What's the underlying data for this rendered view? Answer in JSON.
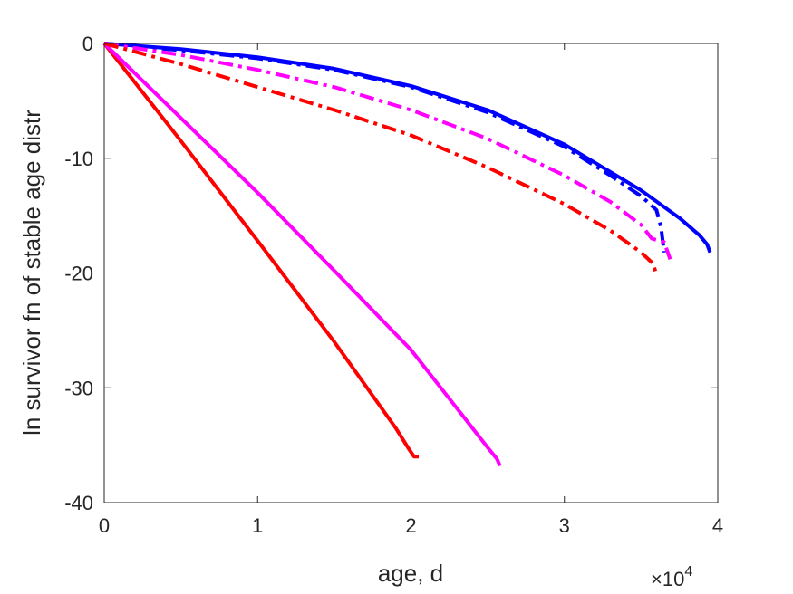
{
  "chart_data": {
    "type": "line",
    "title": "",
    "xlabel": "age, d",
    "ylabel": "ln survivor fn of stable age distr",
    "x_exponent_label": {
      "base": "×10",
      "power": "4"
    },
    "xlim": [
      0,
      40000
    ],
    "ylim": [
      -40,
      0
    ],
    "x_ticks": [
      {
        "value": 0,
        "label": "0"
      },
      {
        "value": 10000,
        "label": "1"
      },
      {
        "value": 20000,
        "label": "2"
      },
      {
        "value": 30000,
        "label": "3"
      },
      {
        "value": 40000,
        "label": "4"
      }
    ],
    "y_ticks": [
      {
        "value": 0,
        "label": "0"
      },
      {
        "value": -10,
        "label": "-10"
      },
      {
        "value": -20,
        "label": "-20"
      },
      {
        "value": -30,
        "label": "-30"
      },
      {
        "value": -40,
        "label": "-40"
      }
    ],
    "grid": false,
    "legend": "none",
    "series": [
      {
        "color": "#ff0000",
        "dash": "solid",
        "x": [
          0,
          5000,
          10000,
          15000,
          19000,
          19800,
          20200,
          20500
        ],
        "y": [
          0,
          -8.5,
          -17.2,
          -26,
          -33.5,
          -35.2,
          -36,
          -36
        ]
      },
      {
        "color": "#ff00ff",
        "dash": "solid",
        "x": [
          0,
          5000,
          10000,
          15000,
          20000,
          24000,
          25000,
          25600,
          25800
        ],
        "y": [
          0,
          -6.5,
          -13,
          -19.8,
          -26.7,
          -33.5,
          -35.2,
          -36.2,
          -36.8
        ]
      },
      {
        "color": "#0000ff",
        "dash": "solid",
        "x": [
          0,
          5000,
          10000,
          15000,
          20000,
          25000,
          30000,
          35000,
          37500,
          38800,
          39300,
          39500
        ],
        "y": [
          0,
          -0.5,
          -1.2,
          -2.2,
          -3.7,
          -5.8,
          -8.8,
          -12.8,
          -15.2,
          -16.7,
          -17.5,
          -18.2
        ]
      },
      {
        "color": "#0000ff",
        "dash": "dashdot",
        "x": [
          0,
          5000,
          10000,
          15000,
          20000,
          25000,
          30000,
          33000,
          35000,
          36000,
          36300,
          36500
        ],
        "y": [
          0,
          -0.6,
          -1.3,
          -2.3,
          -3.8,
          -6.0,
          -9.0,
          -11.5,
          -13.3,
          -14.5,
          -16.0,
          -18.2
        ]
      },
      {
        "color": "#ff00ff",
        "dash": "dashdot",
        "x": [
          0,
          5000,
          10000,
          15000,
          20000,
          25000,
          30000,
          33000,
          35000,
          35700,
          36500,
          36900
        ],
        "y": [
          0,
          -1.0,
          -2.3,
          -3.8,
          -5.8,
          -8.3,
          -11.5,
          -13.8,
          -15.8,
          -17.0,
          -17.3,
          -18.8
        ]
      },
      {
        "color": "#ff0000",
        "dash": "dashdot",
        "x": [
          0,
          5000,
          10000,
          15000,
          20000,
          25000,
          30000,
          33000,
          35000,
          35800,
          36000
        ],
        "y": [
          0,
          -1.8,
          -3.8,
          -5.8,
          -8.0,
          -10.8,
          -14.0,
          -16.3,
          -18.2,
          -19.2,
          -20.2
        ]
      }
    ]
  }
}
